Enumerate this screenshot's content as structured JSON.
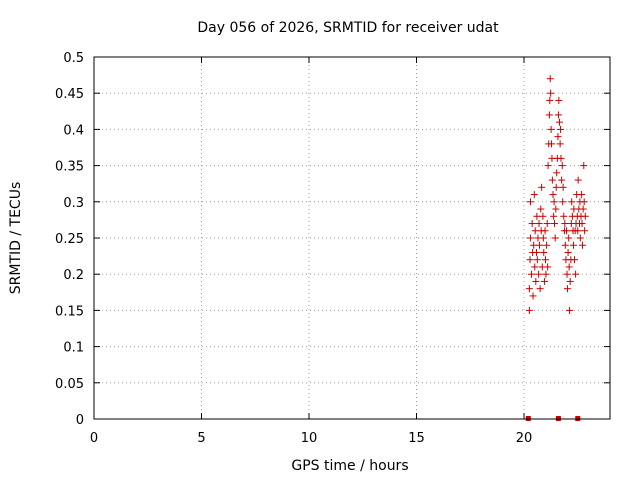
{
  "chart_data": {
    "type": "scatter",
    "title": "Day 056 of 2026, SRMTID for receiver udat",
    "xlabel": "GPS time / hours",
    "ylabel": "SRMTID / TECUs",
    "xlim": [
      0,
      24
    ],
    "ylim": [
      0,
      0.5
    ],
    "xticks": [
      0,
      5,
      10,
      15,
      20
    ],
    "yticks": [
      0,
      0.05,
      0.1,
      0.15,
      0.2,
      0.25,
      0.3,
      0.35,
      0.4,
      0.45,
      0.5
    ],
    "grid": true,
    "marker": "plus",
    "color": "#cc0000",
    "zero_markers": [
      20.2,
      21.6,
      22.5
    ],
    "points": [
      [
        20.25,
        0.15
      ],
      [
        20.25,
        0.18
      ],
      [
        20.28,
        0.22
      ],
      [
        20.3,
        0.25
      ],
      [
        20.3,
        0.3
      ],
      [
        20.35,
        0.2
      ],
      [
        20.38,
        0.27
      ],
      [
        20.4,
        0.23
      ],
      [
        20.42,
        0.17
      ],
      [
        20.45,
        0.24
      ],
      [
        20.48,
        0.31
      ],
      [
        20.5,
        0.21
      ],
      [
        20.52,
        0.26
      ],
      [
        20.55,
        0.19
      ],
      [
        20.58,
        0.23
      ],
      [
        20.6,
        0.28
      ],
      [
        20.62,
        0.22
      ],
      [
        20.65,
        0.25
      ],
      [
        20.68,
        0.2
      ],
      [
        20.7,
        0.27
      ],
      [
        20.72,
        0.24
      ],
      [
        20.75,
        0.18
      ],
      [
        20.78,
        0.29
      ],
      [
        20.8,
        0.26
      ],
      [
        20.82,
        0.32
      ],
      [
        20.85,
        0.21
      ],
      [
        20.88,
        0.28
      ],
      [
        20.9,
        0.25
      ],
      [
        20.92,
        0.23
      ],
      [
        20.95,
        0.19
      ],
      [
        20.98,
        0.26
      ],
      [
        21.0,
        0.22
      ],
      [
        21.02,
        0.2
      ],
      [
        21.05,
        0.24
      ],
      [
        21.08,
        0.27
      ],
      [
        21.1,
        0.21
      ],
      [
        21.12,
        0.35
      ],
      [
        21.15,
        0.38
      ],
      [
        21.18,
        0.42
      ],
      [
        21.2,
        0.44
      ],
      [
        21.22,
        0.47
      ],
      [
        21.24,
        0.45
      ],
      [
        21.26,
        0.4
      ],
      [
        21.28,
        0.38
      ],
      [
        21.3,
        0.36
      ],
      [
        21.32,
        0.33
      ],
      [
        21.35,
        0.31
      ],
      [
        21.38,
        0.28
      ],
      [
        21.4,
        0.3
      ],
      [
        21.42,
        0.27
      ],
      [
        21.45,
        0.25
      ],
      [
        21.48,
        0.29
      ],
      [
        21.5,
        0.32
      ],
      [
        21.52,
        0.34
      ],
      [
        21.55,
        0.36
      ],
      [
        21.58,
        0.39
      ],
      [
        21.6,
        0.42
      ],
      [
        21.62,
        0.44
      ],
      [
        21.65,
        0.41
      ],
      [
        21.68,
        0.38
      ],
      [
        21.7,
        0.4
      ],
      [
        21.72,
        0.36
      ],
      [
        21.75,
        0.33
      ],
      [
        21.78,
        0.35
      ],
      [
        21.8,
        0.3
      ],
      [
        21.82,
        0.32
      ],
      [
        21.85,
        0.28
      ],
      [
        21.88,
        0.26
      ],
      [
        21.9,
        0.27
      ],
      [
        21.92,
        0.24
      ],
      [
        21.95,
        0.22
      ],
      [
        21.98,
        0.26
      ],
      [
        22.0,
        0.2
      ],
      [
        22.02,
        0.18
      ],
      [
        22.05,
        0.23
      ],
      [
        22.08,
        0.25
      ],
      [
        22.1,
        0.21
      ],
      [
        22.12,
        0.15
      ],
      [
        22.15,
        0.19
      ],
      [
        22.18,
        0.22
      ],
      [
        22.2,
        0.27
      ],
      [
        22.22,
        0.3
      ],
      [
        22.25,
        0.28
      ],
      [
        22.28,
        0.26
      ],
      [
        22.3,
        0.24
      ],
      [
        22.32,
        0.29
      ],
      [
        22.35,
        0.22
      ],
      [
        22.38,
        0.26
      ],
      [
        22.4,
        0.2
      ],
      [
        22.42,
        0.27
      ],
      [
        22.45,
        0.31
      ],
      [
        22.48,
        0.28
      ],
      [
        22.5,
        0.26
      ],
      [
        22.52,
        0.33
      ],
      [
        22.55,
        0.29
      ],
      [
        22.58,
        0.27
      ],
      [
        22.6,
        0.3
      ],
      [
        22.62,
        0.25
      ],
      [
        22.65,
        0.28
      ],
      [
        22.68,
        0.31
      ],
      [
        22.7,
        0.27
      ],
      [
        22.72,
        0.24
      ],
      [
        22.75,
        0.29
      ],
      [
        22.78,
        0.35
      ],
      [
        22.8,
        0.3
      ],
      [
        22.82,
        0.26
      ],
      [
        22.85,
        0.28
      ]
    ]
  }
}
